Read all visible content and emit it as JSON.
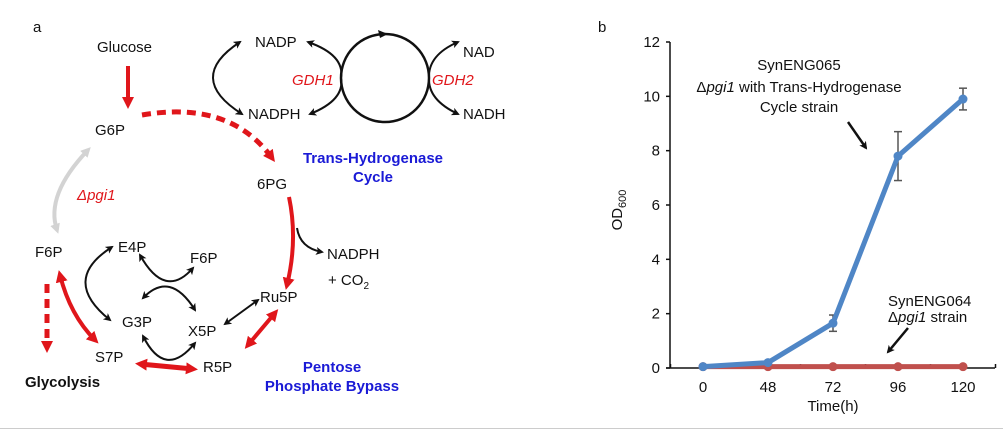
{
  "panel_a": {
    "label": "a",
    "glucose": "Glucose",
    "g6p": "G6P",
    "sixpg": "6PG",
    "delta_pgi1": "Δpgi1",
    "f6p": "F6P",
    "f6p_2": "F6P",
    "e4p": "E4P",
    "g3p": "G3P",
    "x5p": "X5P",
    "s7p": "S7P",
    "r5p": "R5P",
    "ru5p": "Ru5P",
    "glycolysis": "Glycolysis",
    "nadph_co2_line1": "NADPH",
    "nadph_co2_line2": "+ CO",
    "nadph_co2_sub": "2",
    "nadp": "NADP",
    "nadph": "NADPH",
    "nad": "NAD",
    "nadh": "NADH",
    "gdh1": "GDH1",
    "gdh2": "GDH2",
    "thc_line1": "Trans-Hydrogenase",
    "thc_line2": "Cycle",
    "ppb_line1": "Pentose",
    "ppb_line2": "Phosphate Bypass",
    "colors": {
      "red": "#e0161b",
      "blue": "#1a1ad6",
      "gray": "#d3d3d3"
    }
  },
  "panel_b": {
    "label": "b"
  },
  "chart_data": {
    "type": "line",
    "x": [
      0,
      48,
      72,
      96,
      120
    ],
    "xlabel": "Time(h)",
    "ylabel": "OD",
    "ylabel_sub": "600",
    "ylim": [
      0,
      12
    ],
    "yticks": [
      0,
      2,
      4,
      6,
      8,
      10,
      12
    ],
    "grid": false,
    "series": [
      {
        "name": "SynENG065 Δpgi1 with Trans-Hydrogenase Cycle strain",
        "color": "#4f86c6",
        "values": [
          0.05,
          0.2,
          1.65,
          7.8,
          9.9
        ],
        "errors": [
          0,
          0,
          0.3,
          0.9,
          0.4
        ]
      },
      {
        "name": "SynENG064 Δpgi1 strain",
        "color": "#c0504d",
        "values": [
          0.05,
          0.05,
          0.05,
          0.05,
          0.05
        ],
        "errors": [
          0,
          0,
          0,
          0,
          0
        ]
      }
    ],
    "annotations": {
      "s1_line1": "SynENG065",
      "s1_delta": "Δ",
      "s1_gene": "pgi1",
      "s1_rest": " with Trans-Hydrogenase",
      "s1_line3": "Cycle strain",
      "s2_line1": "SynENG064",
      "s2_delta": "Δ",
      "s2_gene": "pgi1",
      "s2_rest": " strain"
    }
  }
}
